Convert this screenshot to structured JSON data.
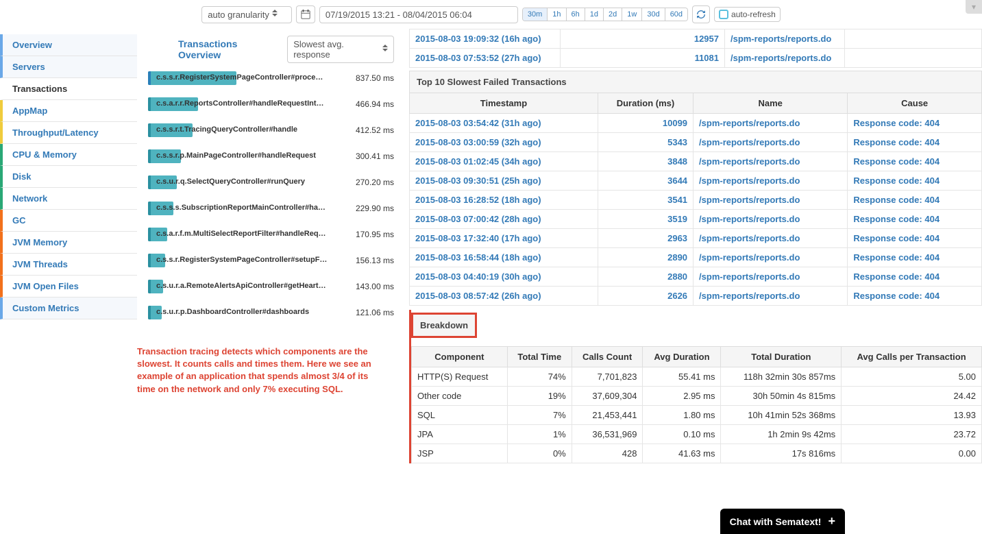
{
  "topbar": {
    "granularity": "auto granularity",
    "daterange": "07/19/2015 13:21 - 08/04/2015 06:04",
    "ranges": [
      "30m",
      "1h",
      "6h",
      "1d",
      "2d",
      "1w",
      "30d",
      "60d"
    ],
    "active_range": "30m",
    "autorefresh_label": "auto-refresh"
  },
  "sidebar": {
    "items": [
      {
        "label": "Overview",
        "cls": "blue"
      },
      {
        "label": "Servers",
        "cls": "blue"
      },
      {
        "label": "Transactions",
        "cls": "sel"
      },
      {
        "label": "AppMap",
        "cls": "yellow"
      },
      {
        "label": "Throughput/Latency",
        "cls": "yellow"
      },
      {
        "label": "CPU & Memory",
        "cls": "green"
      },
      {
        "label": "Disk",
        "cls": "green"
      },
      {
        "label": "Network",
        "cls": "green"
      },
      {
        "label": "GC",
        "cls": "orange"
      },
      {
        "label": "JVM Memory",
        "cls": "orange"
      },
      {
        "label": "JVM Threads",
        "cls": "orange"
      },
      {
        "label": "JVM Open Files",
        "cls": "orange"
      },
      {
        "label": "Custom Metrics",
        "cls": "blue"
      }
    ]
  },
  "tx_overview": {
    "title": "Transactions Overview",
    "sort": "Slowest avg. response",
    "rows": [
      {
        "label": "c.s.s.r.RegisterSystemPageController#proce…",
        "ms": "837.50 ms",
        "w": 46,
        "sel": true
      },
      {
        "label": "c.s.a.r.r.ReportsController#handleRequestInt…",
        "ms": "466.94 ms",
        "w": 26
      },
      {
        "label": "c.s.s.r.t.TracingQueryController#handle",
        "ms": "412.52 ms",
        "w": 23
      },
      {
        "label": "c.s.s.r.p.MainPageController#handleRequest",
        "ms": "300.41 ms",
        "w": 17
      },
      {
        "label": "c.s.u.r.q.SelectQueryController#runQuery",
        "ms": "270.20 ms",
        "w": 15
      },
      {
        "label": "c.s.s.s.SubscriptionReportMainController#ha…",
        "ms": "229.90 ms",
        "w": 13
      },
      {
        "label": "c.s.a.r.f.m.MultiSelectReportFilter#handleReq…",
        "ms": "170.95 ms",
        "w": 10
      },
      {
        "label": "c.s.s.r.RegisterSystemPageController#setupF…",
        "ms": "156.13 ms",
        "w": 9
      },
      {
        "label": "c.s.u.r.a.RemoteAlertsApiController#getHeart…",
        "ms": "143.00 ms",
        "w": 8
      },
      {
        "label": "c.s.u.r.p.DashboardController#dashboards",
        "ms": "121.06 ms",
        "w": 7
      }
    ]
  },
  "note": "Transaction tracing detects which components are the slowest.  It counts calls and times them.  Here we see an example of an application that spends almost 3/4 of its time on the network and only 7% executing SQL.",
  "top_rows": [
    {
      "ts": "2015-08-03 19:09:32 (16h ago)",
      "val": "12957",
      "name": "/spm-reports/reports.do"
    },
    {
      "ts": "2015-08-03 07:53:52 (27h ago)",
      "val": "11081",
      "name": "/spm-reports/reports.do"
    }
  ],
  "slowest_failed": {
    "title": "Top 10 Slowest Failed Transactions",
    "headers": [
      "Timestamp",
      "Duration (ms)",
      "Name",
      "Cause"
    ],
    "rows": [
      {
        "ts": "2015-08-03 03:54:42 (31h ago)",
        "dur": "10099",
        "name": "/spm-reports/reports.do",
        "cause": "Response code: 404"
      },
      {
        "ts": "2015-08-03 03:00:59 (32h ago)",
        "dur": "5343",
        "name": "/spm-reports/reports.do",
        "cause": "Response code: 404"
      },
      {
        "ts": "2015-08-03 01:02:45 (34h ago)",
        "dur": "3848",
        "name": "/spm-reports/reports.do",
        "cause": "Response code: 404"
      },
      {
        "ts": "2015-08-03 09:30:51 (25h ago)",
        "dur": "3644",
        "name": "/spm-reports/reports.do",
        "cause": "Response code: 404"
      },
      {
        "ts": "2015-08-03 16:28:52 (18h ago)",
        "dur": "3541",
        "name": "/spm-reports/reports.do",
        "cause": "Response code: 404"
      },
      {
        "ts": "2015-08-03 07:00:42 (28h ago)",
        "dur": "3519",
        "name": "/spm-reports/reports.do",
        "cause": "Response code: 404"
      },
      {
        "ts": "2015-08-03 17:32:40 (17h ago)",
        "dur": "2963",
        "name": "/spm-reports/reports.do",
        "cause": "Response code: 404"
      },
      {
        "ts": "2015-08-03 16:58:44 (18h ago)",
        "dur": "2890",
        "name": "/spm-reports/reports.do",
        "cause": "Response code: 404"
      },
      {
        "ts": "2015-08-03 04:40:19 (30h ago)",
        "dur": "2880",
        "name": "/spm-reports/reports.do",
        "cause": "Response code: 404"
      },
      {
        "ts": "2015-08-03 08:57:42 (26h ago)",
        "dur": "2626",
        "name": "/spm-reports/reports.do",
        "cause": "Response code: 404"
      }
    ]
  },
  "breakdown": {
    "title": "Breakdown",
    "headers": [
      "Component",
      "Total Time",
      "Calls Count",
      "Avg Duration",
      "Total Duration",
      "Avg Calls per Transaction"
    ],
    "rows": [
      {
        "c": "HTTP(S) Request",
        "tt": "74%",
        "cc": "7,701,823",
        "ad": "55.41 ms",
        "td": "118h 32min 30s 857ms",
        "act": "5.00"
      },
      {
        "c": "Other code",
        "tt": "19%",
        "cc": "37,609,304",
        "ad": "2.95 ms",
        "td": "30h 50min 4s 815ms",
        "act": "24.42"
      },
      {
        "c": "SQL",
        "tt": "7%",
        "cc": "21,453,441",
        "ad": "1.80 ms",
        "td": "10h 41min 52s 368ms",
        "act": "13.93"
      },
      {
        "c": "JPA",
        "tt": "1%",
        "cc": "36,531,969",
        "ad": "0.10 ms",
        "td": "1h 2min 9s 42ms",
        "act": "23.72"
      },
      {
        "c": "JSP",
        "tt": "0%",
        "cc": "428",
        "ad": "41.63 ms",
        "td": "17s 816ms",
        "act": "0.00"
      }
    ]
  },
  "chat": "Chat with Sematext!"
}
